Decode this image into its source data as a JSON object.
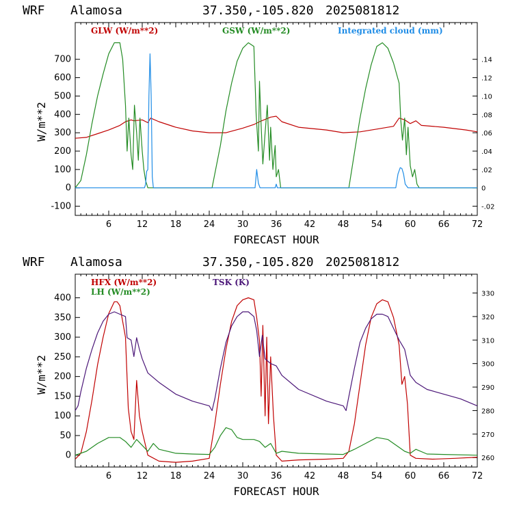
{
  "charts": [
    {
      "header": {
        "model": "WRF",
        "station": "Alamosa",
        "coords": "37.350,-105.820",
        "run": "2025081812"
      },
      "xlabel": "FORECAST HOUR",
      "ylabel": "W/m**2",
      "legend": [
        {
          "text": "GLW (W/m**2)",
          "color": "#c00000"
        },
        {
          "text": "GSW (W/m**2)",
          "color": "#238b23"
        },
        {
          "text": "Integrated cloud (mm)",
          "color": "#1e8ce6"
        }
      ]
    },
    {
      "header": {
        "model": "WRF",
        "station": "Alamosa",
        "coords": "37.350,-105.820",
        "run": "2025081812"
      },
      "xlabel": "FORECAST HOUR",
      "ylabel": "W/m**2",
      "legend": [
        {
          "text": "HFX (W/m**2)",
          "color": "#c00000"
        },
        {
          "text": "LH  (W/m**2)",
          "color": "#238b23"
        },
        {
          "text": "TSK (K)",
          "color": "#4b1678"
        }
      ]
    }
  ],
  "chart_data": [
    {
      "type": "line",
      "title": "WRF Alamosa 37.350,-105.820 2025081812",
      "xlabel": "FORECAST HOUR",
      "ylabel": "W/m**2",
      "xlim": [
        0,
        72
      ],
      "ylim": [
        -150,
        900
      ],
      "xticks": [
        6,
        12,
        18,
        24,
        30,
        36,
        42,
        48,
        54,
        60,
        66,
        72
      ],
      "yticks": [
        -100,
        0,
        100,
        200,
        300,
        400,
        500,
        600,
        700
      ],
      "y2lim": [
        -0.03,
        0.18
      ],
      "y2ticks": [
        -0.02,
        0,
        0.02,
        0.04,
        0.06,
        0.08,
        0.1,
        0.12,
        0.14
      ],
      "y2ticklabels": [
        "-.02",
        "0",
        ".02",
        ".04",
        ".06",
        ".08",
        ".10",
        ".12",
        ".14"
      ],
      "series": [
        {
          "name": "GLW (W/m**2)",
          "axis": "left",
          "color": "#c00000",
          "x": [
            0,
            2,
            4,
            6,
            8,
            9,
            10,
            10.5,
            12,
            13,
            13.5,
            15,
            18,
            21,
            24,
            27,
            30,
            32,
            33,
            35,
            36,
            37,
            40,
            45,
            48,
            51,
            54,
            57,
            58,
            59,
            60,
            61,
            62,
            66,
            70,
            72
          ],
          "y": [
            270,
            275,
            295,
            315,
            340,
            360,
            370,
            365,
            370,
            355,
            380,
            360,
            330,
            310,
            300,
            300,
            325,
            345,
            360,
            385,
            390,
            360,
            330,
            315,
            300,
            305,
            320,
            335,
            380,
            370,
            350,
            365,
            340,
            330,
            315,
            305
          ]
        },
        {
          "name": "GSW (W/m**2)",
          "axis": "left",
          "color": "#238b23",
          "x": [
            0,
            1,
            2,
            3,
            4,
            5,
            6,
            7,
            8,
            8.5,
            9,
            9.3,
            9.6,
            10,
            10.3,
            10.6,
            11,
            11.3,
            11.6,
            12,
            12.3,
            12.6,
            13,
            13.3,
            13.6,
            14,
            24.5,
            26,
            27,
            28,
            29,
            30,
            31,
            32,
            32.4,
            32.8,
            33,
            33.3,
            33.6,
            34,
            34.4,
            34.8,
            35,
            35.4,
            35.8,
            36,
            36.4,
            36.8,
            37.2,
            49,
            50,
            51,
            52,
            53,
            54,
            55,
            56,
            57,
            58,
            58.3,
            58.6,
            59,
            59.3,
            59.6,
            60,
            60.4,
            60.8,
            61.2,
            61.6,
            72
          ],
          "y": [
            0,
            40,
            180,
            350,
            500,
            620,
            730,
            790,
            790,
            700,
            450,
            200,
            380,
            180,
            100,
            450,
            300,
            150,
            380,
            200,
            100,
            40,
            0,
            0,
            0,
            0,
            0,
            230,
            420,
            570,
            690,
            760,
            790,
            770,
            400,
            200,
            580,
            340,
            130,
            300,
            450,
            150,
            330,
            100,
            230,
            60,
            100,
            0,
            0,
            0,
            190,
            380,
            540,
            670,
            770,
            790,
            760,
            680,
            570,
            370,
            260,
            380,
            180,
            330,
            120,
            60,
            100,
            20,
            0,
            0
          ]
        },
        {
          "name": "Integrated cloud (mm)",
          "axis": "right",
          "color": "#1e8ce6",
          "x": [
            0,
            12.4,
            12.6,
            12.8,
            13,
            13.2,
            13.4,
            13.6,
            13.8,
            14,
            32.2,
            32.5,
            32.8,
            33.1,
            35.8,
            36,
            36.2,
            57.4,
            57.8,
            58.2,
            58.5,
            58.8,
            59.1,
            59.6,
            72
          ],
          "y": [
            0,
            0,
            0.004,
            0.018,
            0.02,
            0.1,
            0.146,
            0.1,
            0.012,
            0,
            0,
            0.02,
            0.005,
            0,
            0,
            0.004,
            0,
            0,
            0.015,
            0.022,
            0.021,
            0.015,
            0.004,
            0,
            0
          ]
        }
      ]
    },
    {
      "type": "line",
      "title": "WRF Alamosa 37.350,-105.820 2025081812",
      "xlabel": "FORECAST HOUR",
      "ylabel": "W/m**2",
      "xlim": [
        0,
        72
      ],
      "ylim": [
        -30,
        460
      ],
      "xticks": [
        6,
        12,
        18,
        24,
        30,
        36,
        42,
        48,
        54,
        60,
        66,
        72
      ],
      "yticks": [
        0,
        50,
        100,
        150,
        200,
        250,
        300,
        350,
        400
      ],
      "y2lim": [
        256,
        338
      ],
      "y2ticks": [
        260,
        270,
        280,
        290,
        300,
        310,
        320,
        330
      ],
      "y2ticklabels": [
        "260",
        "270",
        "280",
        "290",
        "300",
        "310",
        "320",
        "330"
      ],
      "series": [
        {
          "name": "HFX (W/m**2)",
          "axis": "left",
          "color": "#c00000",
          "x": [
            0,
            1,
            2,
            3,
            4,
            5,
            6,
            7,
            7.5,
            8,
            9,
            9.5,
            10,
            10.5,
            11,
            11.5,
            12,
            13,
            15,
            18,
            21,
            24,
            25,
            26,
            27,
            28,
            29,
            30,
            31,
            32,
            32.5,
            33,
            33.3,
            33.6,
            34,
            34.3,
            34.6,
            35,
            35.5,
            36,
            37,
            40,
            45,
            48,
            49,
            50,
            51,
            52,
            53,
            54,
            55,
            56,
            57,
            58,
            58.5,
            59,
            59.5,
            60,
            61,
            64,
            68,
            72
          ],
          "y": [
            -10,
            5,
            60,
            140,
            230,
            300,
            360,
            390,
            390,
            380,
            300,
            120,
            60,
            40,
            190,
            100,
            60,
            0,
            -15,
            -18,
            -15,
            -8,
            80,
            180,
            270,
            340,
            380,
            395,
            400,
            395,
            350,
            290,
            150,
            330,
            100,
            300,
            80,
            250,
            100,
            0,
            -15,
            -12,
            -10,
            -8,
            10,
            80,
            180,
            280,
            350,
            385,
            395,
            390,
            350,
            280,
            180,
            200,
            130,
            0,
            -8,
            -10,
            -8,
            -5
          ]
        },
        {
          "name": "LH  (W/m**2)",
          "axis": "left",
          "color": "#238b23",
          "x": [
            0,
            2,
            4,
            6,
            8,
            9,
            10,
            11,
            12,
            13,
            14,
            15,
            18,
            21,
            24,
            25,
            26,
            27,
            28,
            29,
            30,
            32,
            33,
            34,
            35,
            36,
            37,
            40,
            45,
            48,
            50,
            52,
            54,
            56,
            57,
            58,
            59,
            60,
            61,
            63,
            66,
            72
          ],
          "y": [
            0,
            10,
            30,
            45,
            45,
            35,
            20,
            40,
            25,
            10,
            30,
            15,
            5,
            3,
            2,
            20,
            50,
            70,
            65,
            45,
            40,
            40,
            35,
            20,
            30,
            5,
            10,
            5,
            3,
            2,
            15,
            30,
            45,
            40,
            30,
            20,
            10,
            5,
            15,
            3,
            2,
            0
          ]
        },
        {
          "name": "TSK (K)",
          "axis": "right",
          "color": "#4b1678",
          "x": [
            0,
            0.5,
            1,
            2,
            3,
            4,
            5,
            6,
            7,
            8,
            9,
            9.3,
            10,
            10.5,
            11,
            11.5,
            12,
            13,
            15,
            18,
            21,
            24,
            24.5,
            25,
            26,
            27,
            28,
            29,
            30,
            31,
            32,
            32.5,
            33,
            33.5,
            34,
            35,
            36,
            37,
            40,
            45,
            48,
            48.5,
            49,
            50,
            51,
            52,
            53,
            54,
            55,
            56,
            57,
            58,
            59,
            60,
            61,
            63,
            66,
            69,
            72
          ],
          "y": [
            280,
            282,
            288,
            298,
            306,
            313,
            318,
            321,
            322,
            321,
            320,
            311,
            310,
            303,
            311,
            306,
            302,
            296,
            292,
            287,
            284,
            282,
            280,
            285,
            298,
            309,
            316,
            320,
            322,
            322,
            320,
            314,
            303,
            312,
            302,
            300,
            299,
            295,
            289,
            284,
            282,
            280,
            286,
            298,
            309,
            315,
            319,
            321,
            321,
            320,
            315,
            310,
            306,
            295,
            292,
            289,
            287,
            285,
            282
          ]
        }
      ]
    }
  ]
}
